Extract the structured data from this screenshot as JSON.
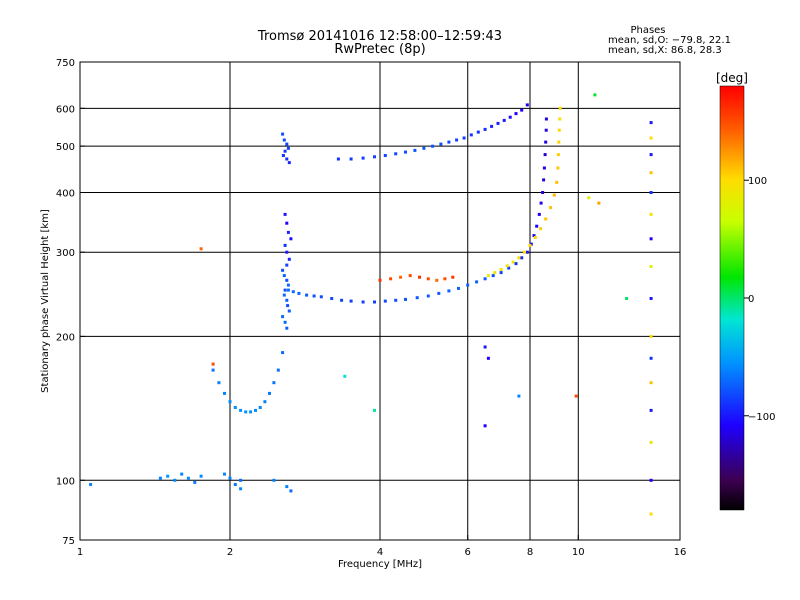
{
  "chart_data": {
    "type": "scatter",
    "title": "Tromsø 20141016 12:58:00–12:59:43",
    "subtitle": "RwPretec (8p)",
    "xlabel": "Frequency [MHz]",
    "ylabel": "Stationary phase Virtual Height [km]",
    "xscale": "log",
    "yscale": "log",
    "xlim": [
      1,
      16
    ],
    "ylim": [
      75,
      750
    ],
    "xticks": [
      1,
      2,
      4,
      6,
      8,
      10,
      16
    ],
    "xtick_labels": [
      "1",
      "2",
      "4",
      "6",
      "8",
      "10",
      "16"
    ],
    "yticks": [
      75,
      100,
      200,
      300,
      400,
      500,
      600,
      750
    ],
    "ytick_labels": [
      "75",
      "100",
      "200",
      "300",
      "400",
      "500",
      "600",
      "750"
    ],
    "grid": true,
    "stats": {
      "heading": "Phases",
      "line_o": "mean, sd,O: −79.8, 22.1",
      "line_x": "mean, sd,X:  86.8, 28.3"
    },
    "colorbar": {
      "label": "[deg]",
      "colormap": "rainbow",
      "vmin": -180,
      "vmax": 180,
      "ticks": [
        100,
        0,
        -100
      ],
      "tick_labels": [
        "100",
        "0",
        "−100"
      ]
    },
    "series": [
      {
        "x": [
          2.58,
          2.6,
          2.62,
          2.65,
          2.58,
          2.6,
          2.63,
          2.6,
          2.55,
          2.57,
          2.6,
          2.62,
          2.58,
          2.57,
          2.6,
          2.61,
          2.63,
          2.55,
          2.58,
          2.6
        ],
        "y": [
          360,
          345,
          330,
          320,
          310,
          300,
          290,
          282,
          275,
          268,
          262,
          256,
          250,
          244,
          238,
          232,
          226,
          220,
          214,
          208
        ],
        "phase": [
          -100,
          -110,
          -95,
          -105,
          -90,
          -100,
          -95,
          -85,
          -80,
          -75,
          -80,
          -70,
          -80,
          -70,
          -75,
          -80,
          -75,
          -70,
          -70,
          -75
        ]
      },
      {
        "x": [
          2.62,
          2.68,
          2.75,
          2.85,
          2.95,
          3.05,
          3.2,
          3.35,
          3.5,
          3.7,
          3.9,
          4.1,
          4.3,
          4.5,
          4.75,
          5.0,
          5.25,
          5.5,
          5.75,
          6.0,
          6.25,
          6.5,
          6.75,
          7.0,
          7.25,
          7.5,
          7.7,
          7.9,
          8.05,
          8.15,
          8.25,
          8.35,
          8.42,
          8.48,
          8.52,
          8.55,
          8.58,
          8.6,
          8.62,
          8.63
        ],
        "y": [
          250,
          248,
          246,
          244,
          243,
          242,
          240,
          238,
          237,
          236,
          236,
          237,
          238,
          239,
          241,
          243,
          246,
          249,
          252,
          256,
          260,
          264,
          268,
          272,
          278,
          284,
          292,
          300,
          312,
          325,
          340,
          360,
          380,
          400,
          425,
          450,
          480,
          510,
          540,
          570
        ],
        "phase": [
          -70,
          -70,
          -72,
          -75,
          -78,
          -80,
          -82,
          -84,
          -85,
          -85,
          -84,
          -82,
          -80,
          -78,
          -76,
          -75,
          -74,
          -73,
          -72,
          -72,
          -74,
          -76,
          -80,
          -84,
          -88,
          -92,
          -96,
          -100,
          -104,
          -108,
          -110,
          -112,
          -114,
          -116,
          -118,
          -118,
          -120,
          -118,
          -116,
          -114
        ]
      },
      {
        "x": [
          3.3,
          3.5,
          3.7,
          3.9,
          4.1,
          4.3,
          4.5,
          4.7,
          4.9,
          5.1,
          5.3,
          5.5,
          5.7,
          5.9,
          6.1,
          6.3,
          6.5,
          6.7,
          6.9,
          7.1,
          7.3,
          7.5,
          7.7,
          7.9
        ],
        "y": [
          470,
          470,
          472,
          475,
          478,
          482,
          486,
          490,
          495,
          500,
          505,
          510,
          515,
          520,
          528,
          535,
          542,
          550,
          558,
          566,
          575,
          585,
          595,
          610
        ],
        "phase": [
          -90,
          -88,
          -86,
          -85,
          -84,
          -82,
          -80,
          -78,
          -78,
          -79,
          -80,
          -82,
          -84,
          -86,
          -88,
          -90,
          -92,
          -95,
          -98,
          -100,
          -104,
          -108,
          -110,
          -112
        ]
      },
      {
        "x": [
          6.6,
          6.8,
          7.0,
          7.2,
          7.4,
          7.6,
          7.8,
          8.0,
          8.2,
          8.4,
          8.6,
          8.8,
          8.95,
          9.05,
          9.1,
          9.12,
          9.14,
          9.16,
          9.18,
          9.2
        ],
        "y": [
          268,
          272,
          276,
          281,
          286,
          292,
          300,
          310,
          322,
          336,
          352,
          372,
          395,
          420,
          450,
          480,
          510,
          540,
          570,
          600
        ],
        "phase": [
          85,
          88,
          90,
          92,
          95,
          98,
          100,
          102,
          104,
          106,
          108,
          110,
          112,
          110,
          108,
          106,
          104,
          102,
          100,
          98
        ]
      },
      {
        "x": [
          1.85,
          1.9,
          1.95,
          2.0,
          2.05,
          2.1,
          2.15,
          2.2,
          2.25,
          2.3,
          2.35,
          2.4,
          2.45,
          2.5,
          2.55
        ],
        "y": [
          170,
          160,
          152,
          146,
          142,
          140,
          139,
          139,
          140,
          142,
          146,
          152,
          160,
          170,
          185
        ],
        "phase": [
          -65,
          -62,
          -60,
          -58,
          -56,
          -55,
          -55,
          -56,
          -58,
          -60,
          -62,
          -64,
          -66,
          -68,
          -70
        ]
      },
      {
        "x": [
          2.55,
          2.57,
          2.6,
          2.62,
          2.58,
          2.56,
          2.6,
          2.63
        ],
        "y": [
          530,
          515,
          505,
          495,
          488,
          478,
          470,
          462
        ],
        "phase": [
          -80,
          -82,
          -84,
          -86,
          -88,
          -90,
          -92,
          -94
        ]
      },
      {
        "x": [
          1.05,
          1.45,
          1.5,
          1.55,
          1.6,
          1.65,
          1.7,
          1.75,
          1.95,
          2.0,
          2.05,
          2.1,
          2.45,
          2.6,
          2.65
        ],
        "y": [
          98,
          101,
          102,
          100,
          103,
          101,
          99,
          102,
          103,
          101,
          98,
          96,
          100,
          97,
          95
        ],
        "phase": [
          -60,
          -62,
          -55,
          -58,
          -60,
          -56,
          -64,
          -58,
          -60,
          -62,
          -64,
          -58,
          -60,
          -62,
          -70
        ]
      },
      {
        "x": [
          4.0,
          4.2,
          4.4,
          4.6,
          4.8,
          5.0,
          5.2,
          5.4,
          5.6
        ],
        "y": [
          262,
          264,
          266,
          268,
          266,
          264,
          262,
          264,
          266
        ],
        "phase": [
          160,
          150,
          140,
          150,
          160,
          150,
          140,
          150,
          160
        ]
      },
      {
        "x": [
          14.0,
          14.0,
          14.0,
          14.0,
          14.0,
          14.0,
          14.0,
          14.0,
          14.0,
          14.0,
          14.0,
          14.0,
          14.0,
          14.0,
          14.0,
          14.0
        ],
        "y": [
          560,
          520,
          480,
          440,
          400,
          360,
          320,
          280,
          240,
          200,
          180,
          160,
          140,
          120,
          100,
          85
        ],
        "phase": [
          -100,
          100,
          -100,
          110,
          -90,
          90,
          -110,
          80,
          -100,
          100,
          -90,
          110,
          -100,
          90,
          -110,
          100
        ]
      },
      {
        "x": [
          6.5,
          6.6,
          7.6,
          10.8,
          10.5,
          11.0,
          12.5,
          9.9,
          3.4,
          3.9,
          2.1,
          1.75,
          1.85,
          6.5
        ],
        "y": [
          190,
          180,
          150,
          640,
          390,
          380,
          240,
          150,
          165,
          140,
          100,
          305,
          175,
          130
        ],
        "phase": [
          -100,
          -110,
          -60,
          10,
          80,
          120,
          0,
          150,
          -20,
          -10,
          -70,
          140,
          150,
          -110
        ]
      }
    ]
  }
}
